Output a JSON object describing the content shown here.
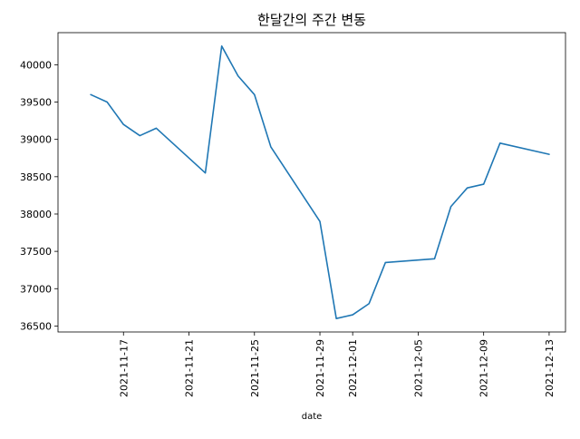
{
  "chart_data": {
    "type": "line",
    "title": "한달간의 주간 변동",
    "xlabel": "date",
    "ylabel": "",
    "x_type": "date",
    "xlim": [
      "2021-11-13",
      "2021-12-14"
    ],
    "ylim": [
      36420,
      40430
    ],
    "x_ticks": [
      "2021-11-17",
      "2021-11-21",
      "2021-11-25",
      "2021-11-29",
      "2021-12-01",
      "2021-12-05",
      "2021-12-09",
      "2021-12-13"
    ],
    "y_ticks": [
      36500,
      37000,
      37500,
      38000,
      38500,
      39000,
      39500,
      40000
    ],
    "y_tick_labels": [
      "36500",
      "37000",
      "37500",
      "38000",
      "38500",
      "39000",
      "39500",
      "40000"
    ],
    "grid": false,
    "legend": "none",
    "series": [
      {
        "color": "#1f77b4",
        "x": [
          "2021-11-15",
          "2021-11-16",
          "2021-11-17",
          "2021-11-18",
          "2021-11-19",
          "2021-11-22",
          "2021-11-23",
          "2021-11-24",
          "2021-11-25",
          "2021-11-26",
          "2021-11-29",
          "2021-11-30",
          "2021-12-01",
          "2021-12-02",
          "2021-12-03",
          "2021-12-06",
          "2021-12-07",
          "2021-12-08",
          "2021-12-09",
          "2021-12-10",
          "2021-12-13"
        ],
        "values": [
          39600,
          39500,
          39200,
          39050,
          39150,
          38550,
          40250,
          39850,
          39600,
          38900,
          37900,
          36600,
          36650,
          36800,
          37350,
          37400,
          38100,
          38350,
          38400,
          38950,
          38800
        ]
      }
    ]
  }
}
